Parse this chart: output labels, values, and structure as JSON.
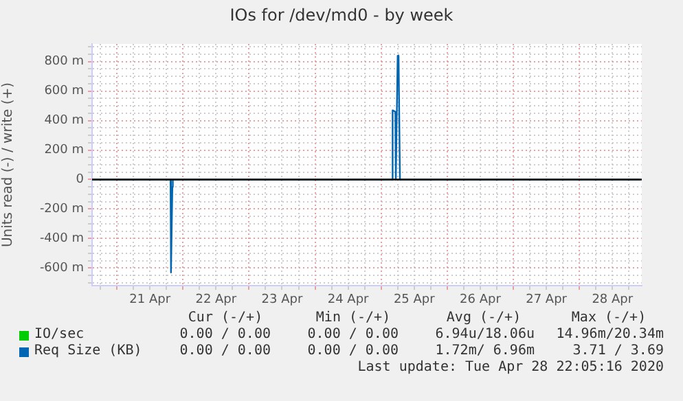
{
  "chart_data": {
    "type": "line",
    "title": "IOs for /dev/md0 - by week",
    "ylabel": "Units read (-) / write (+)",
    "series": [
      {
        "name": "IO/sec",
        "color": "#00cc00"
      },
      {
        "name": "Req Size (KB)",
        "color": "#0066b3",
        "x": [
          "2020-04-20T15:00",
          "2020-04-21T19:30",
          "2020-04-21T19:40",
          "2020-04-21T20:10",
          "2020-04-21T20:20",
          "2020-04-25T04:00",
          "2020-04-25T04:10",
          "2020-04-25T05:10",
          "2020-04-25T05:20",
          "2020-04-25T06:00",
          "2020-04-25T06:20",
          "2020-04-25T06:50",
          "2020-04-28T22:05"
        ],
        "values": [
          0,
          0,
          -630,
          -50,
          0,
          0,
          470,
          460,
          0,
          840,
          840,
          0,
          0
        ]
      }
    ],
    "xlim": [
      "2020-04-20T15:00",
      "2020-04-28T22:40"
    ],
    "xticks": [
      {
        "value": "2020-04-20T18:00",
        "label": null
      },
      {
        "value": "2020-04-21T00:00",
        "label": null
      },
      {
        "value": "2020-04-21T06:00",
        "label": null
      },
      {
        "value": "2020-04-21T12:00",
        "label": "21 Apr"
      },
      {
        "value": "2020-04-21T18:00",
        "label": null
      },
      {
        "value": "2020-04-22T00:00",
        "label": null
      },
      {
        "value": "2020-04-22T06:00",
        "label": null
      },
      {
        "value": "2020-04-22T12:00",
        "label": "22 Apr"
      },
      {
        "value": "2020-04-22T18:00",
        "label": null
      },
      {
        "value": "2020-04-23T00:00",
        "label": null
      },
      {
        "value": "2020-04-23T06:00",
        "label": null
      },
      {
        "value": "2020-04-23T12:00",
        "label": "23 Apr"
      },
      {
        "value": "2020-04-23T18:00",
        "label": null
      },
      {
        "value": "2020-04-24T00:00",
        "label": null
      },
      {
        "value": "2020-04-24T06:00",
        "label": null
      },
      {
        "value": "2020-04-24T12:00",
        "label": "24 Apr"
      },
      {
        "value": "2020-04-24T18:00",
        "label": null
      },
      {
        "value": "2020-04-25T00:00",
        "label": null
      },
      {
        "value": "2020-04-25T06:00",
        "label": null
      },
      {
        "value": "2020-04-25T12:00",
        "label": "25 Apr"
      },
      {
        "value": "2020-04-25T18:00",
        "label": null
      },
      {
        "value": "2020-04-26T00:00",
        "label": null
      },
      {
        "value": "2020-04-26T06:00",
        "label": null
      },
      {
        "value": "2020-04-26T12:00",
        "label": "26 Apr"
      },
      {
        "value": "2020-04-26T18:00",
        "label": null
      },
      {
        "value": "2020-04-27T00:00",
        "label": null
      },
      {
        "value": "2020-04-27T06:00",
        "label": null
      },
      {
        "value": "2020-04-27T12:00",
        "label": "27 Apr"
      },
      {
        "value": "2020-04-27T18:00",
        "label": null
      },
      {
        "value": "2020-04-28T00:00",
        "label": null
      },
      {
        "value": "2020-04-28T06:00",
        "label": null
      },
      {
        "value": "2020-04-28T12:00",
        "label": "28 Apr"
      },
      {
        "value": "2020-04-28T18:00",
        "label": null
      }
    ],
    "ylim": [
      -720,
      920
    ],
    "yticks": [
      {
        "value": -700,
        "label": null
      },
      {
        "value": -650,
        "label": null
      },
      {
        "value": -600,
        "label": "-600 m"
      },
      {
        "value": -550,
        "label": null
      },
      {
        "value": -500,
        "label": null
      },
      {
        "value": -450,
        "label": null
      },
      {
        "value": -400,
        "label": "-400 m"
      },
      {
        "value": -350,
        "label": null
      },
      {
        "value": -300,
        "label": null
      },
      {
        "value": -250,
        "label": null
      },
      {
        "value": -200,
        "label": "-200 m"
      },
      {
        "value": -150,
        "label": null
      },
      {
        "value": -100,
        "label": null
      },
      {
        "value": -50,
        "label": null
      },
      0,
      {
        "value": 50,
        "label": null
      },
      {
        "value": 100,
        "label": null
      },
      {
        "value": 150,
        "label": null
      },
      {
        "value": 200,
        "label": "200 m"
      },
      {
        "value": 250,
        "label": null
      },
      {
        "value": 300,
        "label": null
      },
      {
        "value": 350,
        "label": null
      },
      {
        "value": 400,
        "label": "400 m"
      },
      {
        "value": 450,
        "label": null
      },
      {
        "value": 500,
        "label": null
      },
      {
        "value": 550,
        "label": null
      },
      {
        "value": 600,
        "label": "600 m"
      },
      {
        "value": 650,
        "label": null
      },
      {
        "value": 700,
        "label": null
      },
      {
        "value": 750,
        "label": null
      },
      {
        "value": 800,
        "label": "800 m"
      },
      {
        "value": 850,
        "label": null
      },
      {
        "value": 900,
        "label": null
      }
    ],
    "ref_lines": [
      {
        "axis": "y",
        "value": 0,
        "color": "#000000"
      }
    ],
    "grid": true,
    "legend": "bottom",
    "marker": "none",
    "annotations": [
      "Cur (-/+)",
      "Min (-/+)",
      "Avg (-/+)",
      "Max (-/+)",
      "0.00 / 0.00",
      "0.00 / 0.00",
      "6.94u/18.06u",
      "14.96m/20.34m",
      "0.00 / 0.00",
      "0.00 / 0.00",
      "1.72m/ 6.96m",
      "3.71 / 3.69",
      "Last update: Tue Apr 28 22:05:16 2020"
    ]
  }
}
